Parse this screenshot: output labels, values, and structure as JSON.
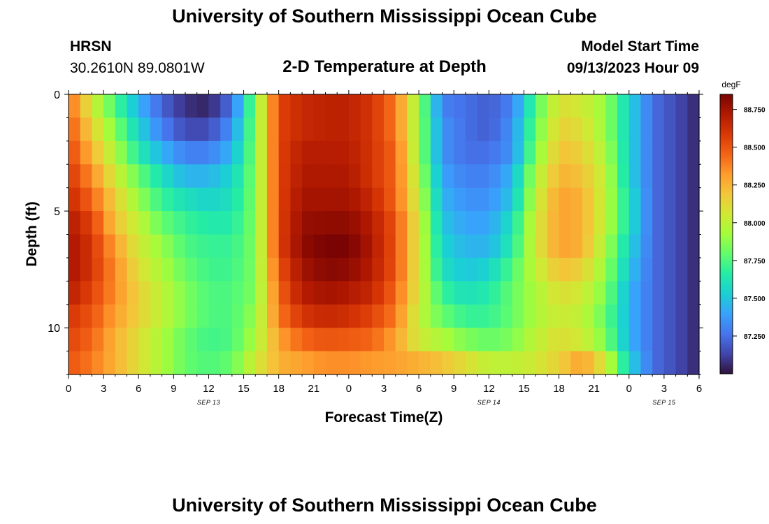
{
  "header": {
    "title": "University of Southern Mississippi Ocean Cube",
    "station": "HRSN",
    "coords": "30.2610N  89.0801W",
    "plot_title": "2-D Temperature at Depth",
    "model_label": "Model Start Time",
    "model_time": "09/13/2023 Hour 09"
  },
  "footer": {
    "title": "University of Southern Mississippi Ocean Cube"
  },
  "chart_data": {
    "type": "heatmap",
    "xlabel": "Forecast Time(Z)",
    "ylabel": "Depth (ft)",
    "x_hours_range": [
      0,
      54
    ],
    "x_tick_labels": [
      "0",
      "3",
      "6",
      "9",
      "12",
      "15",
      "18",
      "21",
      "0",
      "3",
      "6",
      "9",
      "12",
      "15",
      "18",
      "21",
      "0",
      "3",
      "6"
    ],
    "date_labels": [
      {
        "label": "SEP 13",
        "hour": 12
      },
      {
        "label": "SEP 14",
        "hour": 36
      },
      {
        "label": "SEP 15",
        "hour": 51
      }
    ],
    "y_range_ft": [
      0,
      12
    ],
    "y_tick_labels": [
      "0",
      "5",
      "10"
    ],
    "colorbar": {
      "unit": "degF",
      "range": [
        87.0,
        88.85
      ],
      "tick_labels": [
        "88.750",
        "88.500",
        "88.250",
        "88.000",
        "87.750",
        "87.500",
        "87.250"
      ],
      "colors": [
        "#30123b",
        "#4145ab",
        "#4675ed",
        "#39a2fc",
        "#1bcfd4",
        "#24eca6",
        "#61fc6c",
        "#a4fc3b",
        "#d1e834",
        "#f3c63a",
        "#fe9b2d",
        "#f36315",
        "#d93806",
        "#b11901",
        "#7a0403"
      ]
    },
    "hours": [
      0,
      2,
      4,
      6,
      8,
      10,
      12,
      14,
      16,
      18,
      20,
      22,
      24,
      26,
      28,
      30,
      32,
      34,
      36,
      38,
      40,
      42,
      44,
      46,
      48,
      50,
      52,
      54
    ],
    "depth_profiles": [
      {
        "depth": 0.5,
        "temps": [
          88.45,
          88.05,
          87.75,
          87.45,
          87.22,
          87.08,
          87.05,
          87.25,
          87.85,
          88.55,
          88.65,
          88.68,
          88.68,
          88.6,
          88.4,
          87.9,
          87.3,
          87.25,
          87.2,
          87.3,
          87.75,
          88.1,
          88.05,
          87.9,
          87.55,
          87.25,
          87.15,
          87.05
        ]
      },
      {
        "depth": 1.5,
        "temps": [
          88.5,
          88.15,
          87.85,
          87.55,
          87.3,
          87.15,
          87.15,
          87.35,
          87.85,
          88.55,
          88.65,
          88.68,
          88.68,
          88.6,
          88.4,
          87.9,
          87.35,
          87.25,
          87.2,
          87.35,
          87.8,
          88.15,
          88.1,
          87.9,
          87.55,
          87.25,
          87.15,
          87.05
        ]
      },
      {
        "depth": 2.5,
        "temps": [
          88.55,
          88.25,
          87.95,
          87.65,
          87.45,
          87.3,
          87.3,
          87.45,
          87.85,
          88.55,
          88.7,
          88.7,
          88.7,
          88.6,
          88.45,
          87.9,
          87.35,
          87.25,
          87.25,
          87.35,
          87.85,
          88.2,
          88.15,
          87.95,
          87.55,
          87.25,
          87.15,
          87.05
        ]
      },
      {
        "depth": 3.5,
        "temps": [
          88.6,
          88.35,
          88.05,
          87.8,
          87.6,
          87.45,
          87.45,
          87.55,
          87.85,
          88.55,
          88.72,
          88.72,
          88.72,
          88.6,
          88.45,
          87.95,
          87.4,
          87.3,
          87.3,
          87.45,
          87.95,
          88.25,
          88.2,
          88.0,
          87.55,
          87.25,
          87.15,
          87.05
        ]
      },
      {
        "depth": 4.5,
        "temps": [
          88.65,
          88.45,
          88.15,
          87.9,
          87.7,
          87.6,
          87.55,
          87.6,
          87.85,
          88.55,
          88.75,
          88.75,
          88.75,
          88.65,
          88.45,
          88.0,
          87.45,
          87.35,
          87.35,
          87.5,
          88.0,
          88.3,
          88.25,
          88.0,
          87.6,
          87.25,
          87.15,
          87.05
        ]
      },
      {
        "depth": 5.5,
        "temps": [
          88.72,
          88.55,
          88.2,
          88.0,
          87.8,
          87.7,
          87.65,
          87.65,
          87.85,
          88.55,
          88.78,
          88.8,
          88.8,
          88.7,
          88.5,
          88.05,
          87.5,
          87.4,
          87.4,
          87.6,
          88.05,
          88.3,
          88.25,
          88.0,
          87.6,
          87.25,
          87.15,
          87.05
        ]
      },
      {
        "depth": 6.5,
        "temps": [
          88.75,
          88.6,
          88.3,
          88.05,
          87.9,
          87.75,
          87.7,
          87.7,
          87.85,
          88.55,
          88.8,
          88.85,
          88.85,
          88.72,
          88.5,
          88.05,
          87.55,
          87.45,
          87.45,
          87.65,
          88.05,
          88.3,
          88.25,
          87.95,
          87.55,
          87.25,
          87.15,
          87.05
        ]
      },
      {
        "depth": 7.5,
        "temps": [
          88.75,
          88.6,
          88.35,
          88.1,
          87.95,
          87.8,
          87.72,
          87.72,
          87.85,
          88.5,
          88.75,
          88.82,
          88.8,
          88.7,
          88.5,
          88.05,
          87.6,
          87.5,
          87.55,
          87.75,
          88.0,
          88.2,
          88.15,
          87.9,
          87.5,
          87.25,
          87.15,
          87.05
        ]
      },
      {
        "depth": 8.5,
        "temps": [
          88.7,
          88.55,
          88.35,
          88.15,
          88.0,
          87.85,
          87.75,
          87.75,
          87.85,
          88.45,
          88.7,
          88.75,
          88.72,
          88.65,
          88.45,
          88.05,
          87.7,
          87.6,
          87.65,
          87.8,
          87.95,
          88.1,
          88.05,
          87.85,
          87.45,
          87.25,
          87.15,
          87.05
        ]
      },
      {
        "depth": 9.5,
        "temps": [
          88.6,
          88.5,
          88.3,
          88.15,
          88.0,
          87.85,
          87.75,
          87.75,
          87.9,
          88.4,
          88.6,
          88.65,
          88.62,
          88.55,
          88.4,
          88.0,
          87.8,
          87.7,
          87.7,
          87.8,
          87.95,
          88.05,
          88.0,
          87.8,
          87.45,
          87.25,
          87.15,
          87.05
        ]
      },
      {
        "depth": 10.5,
        "temps": [
          88.55,
          88.45,
          88.25,
          88.1,
          87.95,
          87.8,
          87.72,
          87.75,
          87.95,
          88.3,
          88.45,
          88.5,
          88.48,
          88.45,
          88.3,
          88.05,
          87.95,
          87.85,
          87.8,
          87.85,
          88.0,
          88.1,
          88.05,
          87.85,
          87.45,
          87.25,
          87.15,
          87.05
        ]
      },
      {
        "depth": 11.5,
        "temps": [
          88.5,
          88.4,
          88.25,
          88.1,
          87.95,
          87.8,
          87.75,
          87.8,
          88.05,
          88.25,
          88.3,
          88.35,
          88.35,
          88.32,
          88.3,
          88.25,
          88.2,
          88.1,
          88.0,
          88.0,
          88.05,
          88.15,
          88.3,
          88.05,
          87.55,
          87.25,
          87.15,
          87.05
        ]
      }
    ]
  }
}
